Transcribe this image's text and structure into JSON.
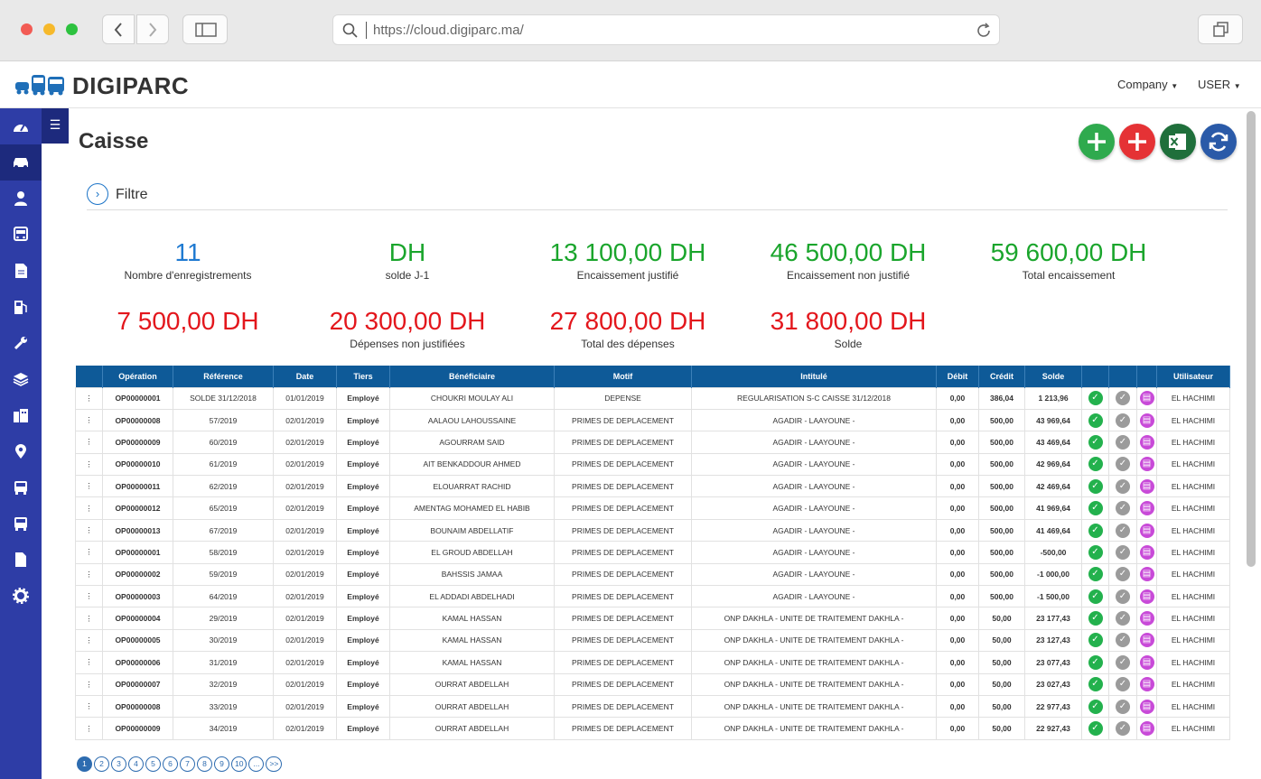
{
  "browser": {
    "url": "https://cloud.digiparc.ma/"
  },
  "header": {
    "brand": "DIGIPARC",
    "menu_company": "Company",
    "menu_user": "USER"
  },
  "sidebar": {
    "items": [
      "dashboard-icon",
      "car-icon",
      "user-icon",
      "bus-icon",
      "document-icon",
      "fuel-icon",
      "wrench-icon",
      "layers-icon",
      "buildings-icon",
      "map-pin-icon",
      "bus-front-icon",
      "bus-side-icon",
      "file-icon",
      "gear-icon"
    ]
  },
  "page": {
    "title": "Caisse",
    "filter_label": "Filtre"
  },
  "stats": [
    {
      "value": "11",
      "label": "Nombre d'enregistrements",
      "color": "#1f7ad1"
    },
    {
      "value": "DH",
      "label": "solde J-1",
      "color": "#1aa52c"
    },
    {
      "value": "13 100,00 DH",
      "label": "Encaissement justifié",
      "color": "#1aa52c"
    },
    {
      "value": "46 500,00 DH",
      "label": "Encaissement non justifié",
      "color": "#1aa52c"
    },
    {
      "value": "59 600,00 DH",
      "label": "Total encaissement",
      "color": "#1aa52c"
    },
    {
      "value": "7 500,00 DH",
      "label": "",
      "color": "#e3161c"
    },
    {
      "value": "20 300,00 DH",
      "label": "Dépenses non justifiées",
      "color": "#e3161c"
    },
    {
      "value": "27 800,00 DH",
      "label": "Total des dépenses",
      "color": "#e3161c"
    },
    {
      "value": "31 800,00 DH",
      "label": "Solde",
      "color": "#e3161c"
    }
  ],
  "table": {
    "columns": [
      "",
      "Opération",
      "Référence",
      "Date",
      "Tiers",
      "Bénéficiaire",
      "Motif",
      "Intitulé",
      "Débit",
      "Crédit",
      "Solde",
      "",
      "",
      "",
      "Utilisateur"
    ],
    "rows": [
      [
        "OP00000001",
        "SOLDE 31/12/2018",
        "01/01/2019",
        "Employé",
        "CHOUKRI MOULAY ALI",
        "DEPENSE",
        "REGULARISATION S-C CAISSE 31/12/2018",
        "0,00",
        "386,04",
        "1 213,96",
        "EL HACHIMI"
      ],
      [
        "OP00000008",
        "57/2019",
        "02/01/2019",
        "Employé",
        "AALAOU LAHOUSSAINE",
        "PRIMES DE DEPLACEMENT",
        "AGADIR - LAAYOUNE -",
        "0,00",
        "500,00",
        "43 969,64",
        "EL HACHIMI"
      ],
      [
        "OP00000009",
        "60/2019",
        "02/01/2019",
        "Employé",
        "AGOURRAM SAID",
        "PRIMES DE DEPLACEMENT",
        "AGADIR - LAAYOUNE -",
        "0,00",
        "500,00",
        "43 469,64",
        "EL HACHIMI"
      ],
      [
        "OP00000010",
        "61/2019",
        "02/01/2019",
        "Employé",
        "AIT BENKADDOUR AHMED",
        "PRIMES DE DEPLACEMENT",
        "AGADIR - LAAYOUNE -",
        "0,00",
        "500,00",
        "42 969,64",
        "EL HACHIMI"
      ],
      [
        "OP00000011",
        "62/2019",
        "02/01/2019",
        "Employé",
        "ELOUARRAT RACHID",
        "PRIMES DE DEPLACEMENT",
        "AGADIR - LAAYOUNE -",
        "0,00",
        "500,00",
        "42 469,64",
        "EL HACHIMI"
      ],
      [
        "OP00000012",
        "65/2019",
        "02/01/2019",
        "Employé",
        "AMENTAG MOHAMED EL HABIB",
        "PRIMES DE DEPLACEMENT",
        "AGADIR - LAAYOUNE -",
        "0,00",
        "500,00",
        "41 969,64",
        "EL HACHIMI"
      ],
      [
        "OP00000013",
        "67/2019",
        "02/01/2019",
        "Employé",
        "BOUNAIM ABDELLATIF",
        "PRIMES DE DEPLACEMENT",
        "AGADIR - LAAYOUNE -",
        "0,00",
        "500,00",
        "41 469,64",
        "EL HACHIMI"
      ],
      [
        "OP00000001",
        "58/2019",
        "02/01/2019",
        "Employé",
        "EL GROUD ABDELLAH",
        "PRIMES DE DEPLACEMENT",
        "AGADIR - LAAYOUNE -",
        "0,00",
        "500,00",
        "-500,00",
        "EL HACHIMI"
      ],
      [
        "OP00000002",
        "59/2019",
        "02/01/2019",
        "Employé",
        "BAHSSIS JAMAA",
        "PRIMES DE DEPLACEMENT",
        "AGADIR - LAAYOUNE -",
        "0,00",
        "500,00",
        "-1 000,00",
        "EL HACHIMI"
      ],
      [
        "OP00000003",
        "64/2019",
        "02/01/2019",
        "Employé",
        "EL ADDADI ABDELHADI",
        "PRIMES DE DEPLACEMENT",
        "AGADIR - LAAYOUNE -",
        "0,00",
        "500,00",
        "-1 500,00",
        "EL HACHIMI"
      ],
      [
        "OP00000004",
        "29/2019",
        "02/01/2019",
        "Employé",
        "KAMAL HASSAN",
        "PRIMES DE DEPLACEMENT",
        "ONP DAKHLA - UNITE DE TRAITEMENT DAKHLA -",
        "0,00",
        "50,00",
        "23 177,43",
        "EL HACHIMI"
      ],
      [
        "OP00000005",
        "30/2019",
        "02/01/2019",
        "Employé",
        "KAMAL HASSAN",
        "PRIMES DE DEPLACEMENT",
        "ONP DAKHLA - UNITE DE TRAITEMENT DAKHLA -",
        "0,00",
        "50,00",
        "23 127,43",
        "EL HACHIMI"
      ],
      [
        "OP00000006",
        "31/2019",
        "02/01/2019",
        "Employé",
        "KAMAL HASSAN",
        "PRIMES DE DEPLACEMENT",
        "ONP DAKHLA - UNITE DE TRAITEMENT DAKHLA -",
        "0,00",
        "50,00",
        "23 077,43",
        "EL HACHIMI"
      ],
      [
        "OP00000007",
        "32/2019",
        "02/01/2019",
        "Employé",
        "OURRAT ABDELLAH",
        "PRIMES DE DEPLACEMENT",
        "ONP DAKHLA - UNITE DE TRAITEMENT DAKHLA -",
        "0,00",
        "50,00",
        "23 027,43",
        "EL HACHIMI"
      ],
      [
        "OP00000008",
        "33/2019",
        "02/01/2019",
        "Employé",
        "OURRAT ABDELLAH",
        "PRIMES DE DEPLACEMENT",
        "ONP DAKHLA - UNITE DE TRAITEMENT DAKHLA -",
        "0,00",
        "50,00",
        "22 977,43",
        "EL HACHIMI"
      ],
      [
        "OP00000009",
        "34/2019",
        "02/01/2019",
        "Employé",
        "OURRAT ABDELLAH",
        "PRIMES DE DEPLACEMENT",
        "ONP DAKHLA - UNITE DE TRAITEMENT DAKHLA -",
        "0,00",
        "50,00",
        "22 927,43",
        "EL HACHIMI"
      ]
    ]
  },
  "pagination": {
    "pages": [
      "1",
      "2",
      "3",
      "4",
      "5",
      "6",
      "7",
      "8",
      "9",
      "10",
      "...",
      ">>"
    ],
    "active": "1"
  }
}
